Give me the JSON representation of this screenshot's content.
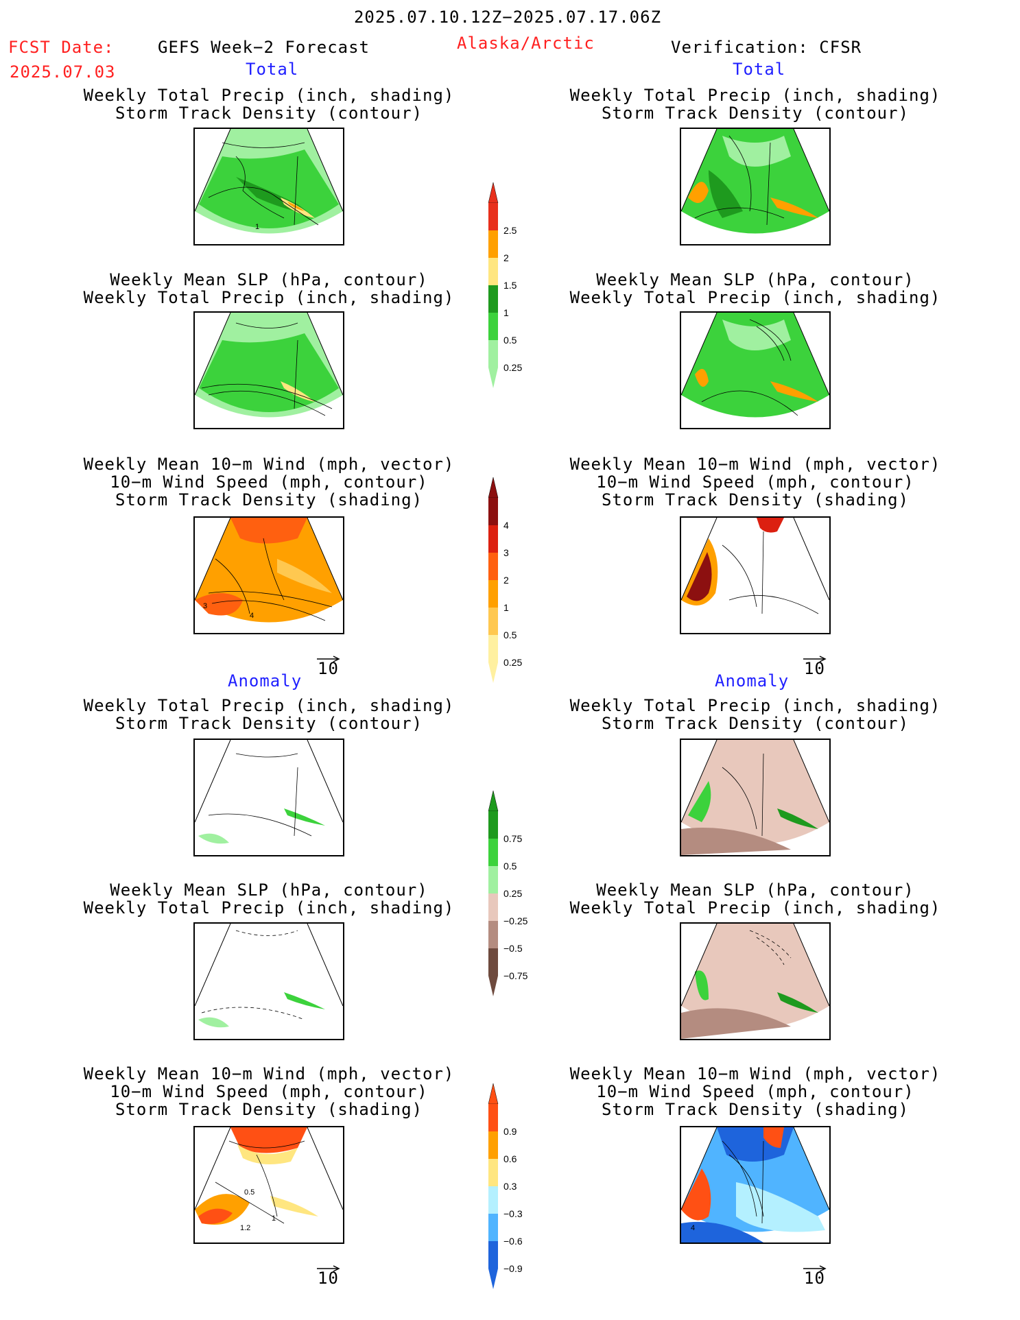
{
  "header": {
    "period": "2025.07.10.12Z−2025.07.17.06Z",
    "fcst_label": "FCST Date:",
    "fcst_date": "2025.07.03",
    "forecast_title": "GEFS Week−2 Forecast",
    "region": "Alaska/Arctic",
    "verification": "Verification: CFSR"
  },
  "sections": {
    "total_left": "Total",
    "total_right": "Total",
    "anomaly_left": "Anomaly",
    "anomaly_right": "Anomaly"
  },
  "panels": {
    "precip_storm": [
      "Weekly Total Precip (inch, shading)",
      "Storm Track Density (contour)"
    ],
    "slp_precip": [
      "Weekly Mean SLP (hPa, contour)",
      "Weekly Total Precip (inch, shading)"
    ],
    "wind_storm": [
      "Weekly Mean 10−m Wind (mph, vector)",
      "10−m Wind Speed (mph, contour)",
      "Storm Track Density (shading)"
    ]
  },
  "vector_scale": "10",
  "colorbars": {
    "precip_total": {
      "labels": [
        "2.5",
        "2",
        "1.5",
        "1",
        "0.5",
        "0.25"
      ],
      "colors": [
        "#e8301c",
        "#ffa000",
        "#ffe680",
        "#1e9a1e",
        "#3cd23c",
        "#a0f0a0"
      ]
    },
    "storm_total": {
      "labels": [
        "4",
        "3",
        "2",
        "1",
        "0.5",
        "0.25"
      ],
      "colors": [
        "#8c1010",
        "#dc2010",
        "#ff6010",
        "#ffa000",
        "#ffc850",
        "#fff0a0"
      ]
    },
    "precip_anom": {
      "labels": [
        "0.75",
        "0.5",
        "0.25",
        "−0.25",
        "−0.5",
        "−0.75"
      ],
      "colors": [
        "#1e9a1e",
        "#3cd23c",
        "#a0f0a0",
        "#e8c8bc",
        "#b48c80",
        "#6e4a3e"
      ]
    },
    "storm_anom": {
      "labels": [
        "0.9",
        "0.6",
        "0.3",
        "−0.3",
        "−0.6",
        "−0.9"
      ],
      "colors": [
        "#ff5014",
        "#ffa000",
        "#ffe680",
        "#b4f0ff",
        "#50b4ff",
        "#1e64dc"
      ]
    }
  },
  "contour_labels": {
    "tl": "1",
    "wl_a": "3",
    "wl_b": "4",
    "wal_a": "0.5",
    "wal_b": "1",
    "wal_c": "1.2",
    "war": "4"
  }
}
